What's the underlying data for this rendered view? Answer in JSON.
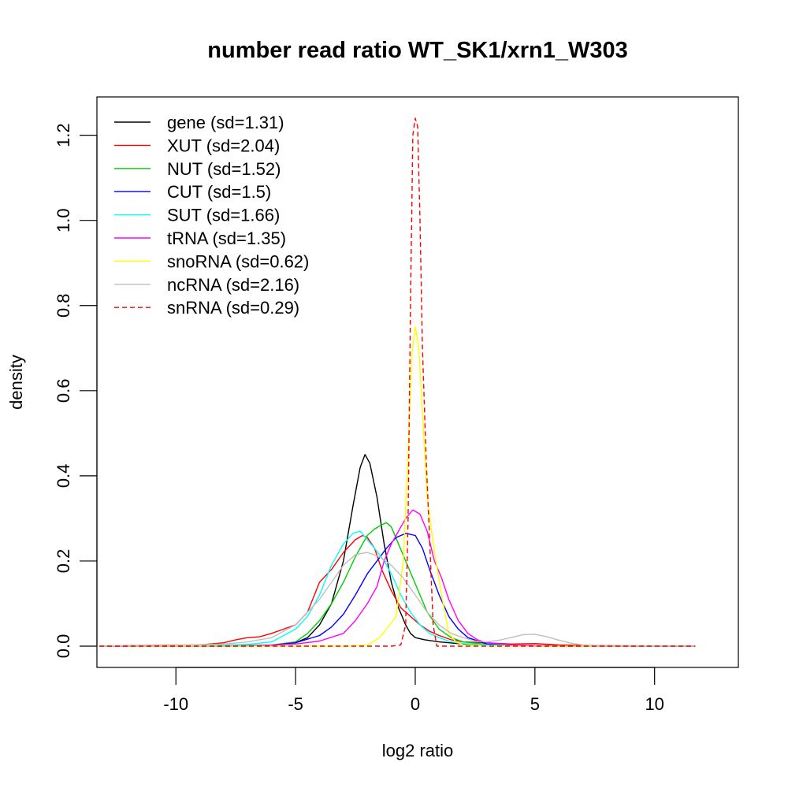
{
  "chart_data": {
    "type": "line",
    "title": "number read ratio WT_SK1/xrn1_W303",
    "xlabel": "log2 ratio",
    "ylabel": "density",
    "xlim": [
      -13.3,
      13.5
    ],
    "ylim": [
      -0.05,
      1.29
    ],
    "xticks": [
      -10,
      -5,
      0,
      5,
      10
    ],
    "xtick_labels": [
      "-10",
      "-5",
      "0",
      "5",
      "10"
    ],
    "yticks": [
      0.0,
      0.2,
      0.4,
      0.6,
      0.8,
      1.0,
      1.2
    ],
    "ytick_labels": [
      "0.0",
      "0.2",
      "0.4",
      "0.6",
      "0.8",
      "1.0",
      "1.2"
    ],
    "grid": false,
    "legend_position": "top-left",
    "series": [
      {
        "name": "gene (sd=1.31)",
        "color": "#000000",
        "dash": false,
        "x": [
          -13.2,
          -8,
          -6,
          -5,
          -4.5,
          -4,
          -3.5,
          -3,
          -2.6,
          -2.3,
          -2.1,
          -1.9,
          -1.6,
          -1.3,
          -1,
          -0.7,
          -0.4,
          -0.2,
          0,
          0.4,
          1,
          2,
          4,
          8,
          11.7
        ],
        "y": [
          0,
          0,
          0.002,
          0.008,
          0.02,
          0.05,
          0.1,
          0.2,
          0.33,
          0.42,
          0.45,
          0.43,
          0.35,
          0.24,
          0.15,
          0.09,
          0.05,
          0.03,
          0.02,
          0.015,
          0.01,
          0.005,
          0.002,
          0,
          0
        ]
      },
      {
        "name": "XUT (sd=2.04)",
        "color": "#ff0000",
        "dash": false,
        "x": [
          -13.2,
          -11,
          -9,
          -8,
          -7.5,
          -7,
          -6.5,
          -6,
          -5.5,
          -5,
          -4.5,
          -4,
          -3.5,
          -3,
          -2.5,
          -2.2,
          -2,
          -1.7,
          -1.4,
          -1,
          -0.6,
          -0.2,
          0.2,
          0.6,
          1,
          1.5,
          2,
          3,
          4,
          5,
          6,
          8,
          11.7
        ],
        "y": [
          0,
          0.002,
          0.003,
          0.008,
          0.015,
          0.02,
          0.022,
          0.03,
          0.04,
          0.05,
          0.08,
          0.15,
          0.18,
          0.22,
          0.25,
          0.26,
          0.255,
          0.23,
          0.18,
          0.13,
          0.09,
          0.07,
          0.05,
          0.035,
          0.025,
          0.015,
          0.01,
          0.008,
          0.005,
          0.006,
          0.003,
          0.001,
          0
        ]
      },
      {
        "name": "NUT (sd=1.52)",
        "color": "#00cd00",
        "dash": false,
        "x": [
          -13.2,
          -8,
          -6,
          -5,
          -4.5,
          -4,
          -3.5,
          -3,
          -2.5,
          -2,
          -1.7,
          -1.4,
          -1.2,
          -1,
          -0.7,
          -0.4,
          -0.1,
          0.2,
          0.5,
          1,
          1.5,
          2,
          3,
          5,
          11.7
        ],
        "y": [
          0,
          0,
          0.003,
          0.01,
          0.03,
          0.06,
          0.1,
          0.15,
          0.21,
          0.26,
          0.275,
          0.285,
          0.29,
          0.28,
          0.24,
          0.2,
          0.16,
          0.12,
          0.08,
          0.04,
          0.02,
          0.01,
          0.004,
          0,
          0
        ]
      },
      {
        "name": "CUT (sd=1.5)",
        "color": "#0000ff",
        "dash": false,
        "x": [
          -13.2,
          -8,
          -6,
          -5,
          -4,
          -3.5,
          -3,
          -2.5,
          -2,
          -1.6,
          -1.2,
          -0.8,
          -0.4,
          0,
          0.3,
          0.6,
          1,
          1.4,
          1.8,
          2.2,
          3,
          5,
          11.7
        ],
        "y": [
          0,
          0,
          0.002,
          0.008,
          0.025,
          0.045,
          0.075,
          0.12,
          0.17,
          0.2,
          0.23,
          0.255,
          0.265,
          0.26,
          0.23,
          0.18,
          0.12,
          0.07,
          0.04,
          0.02,
          0.005,
          0,
          0
        ]
      },
      {
        "name": "SUT (sd=1.66)",
        "color": "#00ffff",
        "dash": false,
        "x": [
          -13.2,
          -9,
          -7,
          -6,
          -5,
          -4.5,
          -4,
          -3.5,
          -3,
          -2.6,
          -2.3,
          -2,
          -1.7,
          -1.3,
          -1,
          -0.6,
          -0.2,
          0.2,
          0.6,
          1,
          1.5,
          2,
          3,
          5,
          11.7
        ],
        "y": [
          0,
          0.002,
          0.004,
          0.01,
          0.04,
          0.07,
          0.12,
          0.19,
          0.24,
          0.265,
          0.27,
          0.25,
          0.23,
          0.2,
          0.17,
          0.12,
          0.08,
          0.05,
          0.03,
          0.02,
          0.01,
          0.006,
          0.003,
          0,
          0
        ]
      },
      {
        "name": "tRNA (sd=1.35)",
        "color": "#ff00ff",
        "dash": false,
        "x": [
          -13.2,
          -7,
          -5,
          -4,
          -3,
          -2.5,
          -2,
          -1.6,
          -1.3,
          -1,
          -0.7,
          -0.4,
          -0.1,
          0.2,
          0.5,
          0.8,
          1.1,
          1.4,
          1.8,
          2.2,
          2.6,
          3,
          4,
          5,
          6,
          11.7
        ],
        "y": [
          0,
          0,
          0.005,
          0.012,
          0.03,
          0.06,
          0.1,
          0.14,
          0.2,
          0.24,
          0.27,
          0.3,
          0.32,
          0.31,
          0.27,
          0.2,
          0.16,
          0.11,
          0.06,
          0.03,
          0.015,
          0.008,
          0.003,
          0.002,
          0,
          0
        ]
      },
      {
        "name": "snoRNA (sd=0.62)",
        "color": "#ffff00",
        "dash": false,
        "x": [
          -13.2,
          -3,
          -2,
          -1.5,
          -1.2,
          -0.8,
          -0.5,
          -0.3,
          -0.15,
          0,
          0.15,
          0.3,
          0.5,
          0.8,
          1.1,
          1.4,
          1.7,
          2,
          3,
          11.7
        ],
        "y": [
          0,
          0,
          0.002,
          0.02,
          0.04,
          0.07,
          0.2,
          0.45,
          0.68,
          0.75,
          0.7,
          0.55,
          0.35,
          0.22,
          0.12,
          0.03,
          0.01,
          0.003,
          0,
          0
        ]
      },
      {
        "name": "ncRNA (sd=2.16)",
        "color": "#bebebe",
        "dash": false,
        "x": [
          -13.2,
          -10,
          -8,
          -7,
          -6,
          -5,
          -4,
          -3.5,
          -3,
          -2.5,
          -2,
          -1.5,
          -1,
          -0.5,
          0,
          0.5,
          1,
          1.5,
          2,
          2.5,
          3,
          3.5,
          4,
          4.5,
          5,
          5.5,
          6,
          6.5,
          7,
          8,
          11.7
        ],
        "y": [
          0,
          0.002,
          0.005,
          0.01,
          0.02,
          0.05,
          0.11,
          0.15,
          0.19,
          0.215,
          0.22,
          0.21,
          0.19,
          0.16,
          0.12,
          0.08,
          0.05,
          0.03,
          0.02,
          0.012,
          0.01,
          0.014,
          0.02,
          0.027,
          0.028,
          0.022,
          0.014,
          0.007,
          0.003,
          0,
          0
        ]
      },
      {
        "name": "snRNA (sd=0.29)",
        "color": "#ff0000",
        "dash": true,
        "x": [
          -13.2,
          -1,
          -0.6,
          -0.4,
          -0.3,
          -0.2,
          -0.1,
          0,
          0.1,
          0.2,
          0.3,
          0.45,
          0.6,
          0.75,
          0.9,
          11.7
        ],
        "y": [
          0,
          0,
          0.003,
          0.05,
          0.3,
          0.8,
          1.2,
          1.24,
          1.22,
          1.0,
          0.7,
          0.45,
          0.25,
          0.05,
          0,
          0
        ]
      }
    ]
  }
}
